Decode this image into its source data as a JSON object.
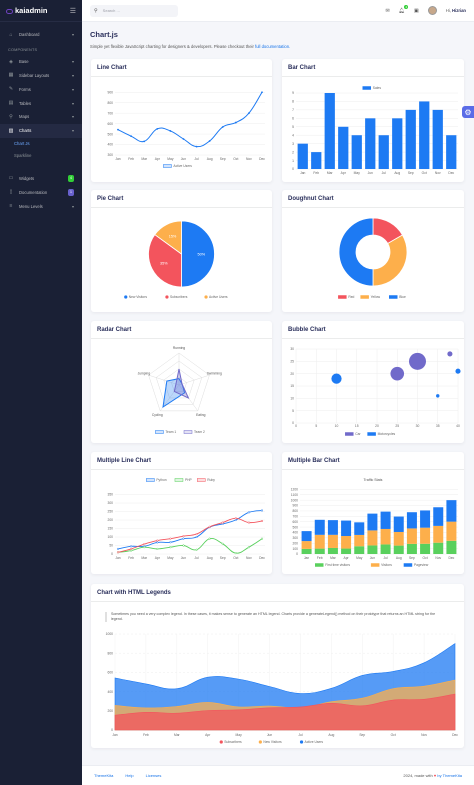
{
  "brand": {
    "name": "kaiadmin"
  },
  "topbar": {
    "search_placeholder": "Search ...",
    "notify_count": "4",
    "greeting": "Hi,",
    "user_name": "Hizrian"
  },
  "sidebar": {
    "items": [
      {
        "label": "Dashboard",
        "icon": "home-icon"
      }
    ],
    "section_label": "COMPONENTS",
    "components": [
      {
        "label": "Base",
        "icon": "layers-icon"
      },
      {
        "label": "Sidebar Layouts",
        "icon": "th-icon"
      },
      {
        "label": "Forms",
        "icon": "pen-icon"
      },
      {
        "label": "Tables",
        "icon": "table-icon"
      },
      {
        "label": "Maps",
        "icon": "map-marker-icon"
      },
      {
        "label": "Charts",
        "icon": "chart-bar-icon"
      }
    ],
    "chart_sub": [
      {
        "label": "Chart Js"
      },
      {
        "label": "Sparkline"
      }
    ],
    "bottom": [
      {
        "label": "Widgets",
        "icon": "desktop-icon",
        "badge": "4",
        "badge_color": "#31ce36"
      },
      {
        "label": "Documentation",
        "icon": "file-icon",
        "badge": "1",
        "badge_color": "#6861ce"
      },
      {
        "label": "Menu Levels",
        "icon": "bars-icon"
      }
    ]
  },
  "page": {
    "title": "Chart.js",
    "subtitle": "Simple yet flexible JavaScript charting for designers & developers. Please checkout their",
    "subtitle_link": "full documentation."
  },
  "cards": {
    "line": "Line Chart",
    "bar": "Bar Chart",
    "pie": "Pie Chart",
    "doughnut": "Doughnut Chart",
    "radar": "Radar Chart",
    "bubble": "Bubble Chart",
    "multiline": "Multiple Line Chart",
    "multibar": "Multiple Bar Chart",
    "html": "Chart with HTML Legends"
  },
  "html_legend_text": "Sometimes you need a very complex legend. In these cases, it makes sense to generate an HTML legend. Charts provide a generateLegend() method on their prototype that returns an HTML string for the legend.",
  "footer": {
    "links": [
      "ThemeKita",
      "Help",
      "Licenses"
    ],
    "credit": "2024, made with",
    "credit_by": "by ThemeKita"
  },
  "colors": {
    "blue": "#1d7af3",
    "red": "#f3545d",
    "yellow": "#fdaf4b",
    "purple": "#716aca",
    "green": "#59d05d",
    "sidebar": "#1a2035"
  },
  "chart_data": [
    {
      "id": "line",
      "type": "line",
      "categories": [
        "Jan",
        "Feb",
        "Mar",
        "Apr",
        "May",
        "Jun",
        "Jul",
        "Aug",
        "Sep",
        "Oct",
        "Nov",
        "Dec"
      ],
      "ylim": [
        300,
        950
      ],
      "yticks": [
        300,
        400,
        500,
        600,
        700,
        800,
        900
      ],
      "series": [
        {
          "name": "Active Users",
          "color": "#1d7af3",
          "values": [
            542,
            480,
            430,
            550,
            530,
            453,
            380,
            434,
            568,
            610,
            700,
            900
          ]
        }
      ]
    },
    {
      "id": "bar",
      "type": "bar",
      "categories": [
        "Jan",
        "Feb",
        "Mar",
        "Apr",
        "May",
        "Jun",
        "Jul",
        "Aug",
        "Sep",
        "Oct",
        "Nov",
        "Dec"
      ],
      "ylim": [
        0,
        9
      ],
      "yticks": [
        0,
        1,
        2,
        3,
        4,
        5,
        6,
        7,
        8,
        9
      ],
      "series": [
        {
          "name": "Sales",
          "color": "#1d7af3",
          "values": [
            3,
            2,
            9,
            5,
            4,
            6,
            4,
            6,
            7,
            8,
            7,
            4
          ]
        }
      ]
    },
    {
      "id": "pie",
      "type": "pie",
      "series": [
        {
          "name": "New Visitors",
          "value": 50,
          "label": "50%",
          "color": "#1d7af3"
        },
        {
          "name": "Subscribers",
          "value": 35,
          "label": "35%",
          "color": "#f3545d"
        },
        {
          "name": "Active Users",
          "value": 15,
          "label": "15%",
          "color": "#fdaf4b"
        }
      ]
    },
    {
      "id": "doughnut",
      "type": "doughnut",
      "series": [
        {
          "name": "Red",
          "value": 10,
          "color": "#f3545d"
        },
        {
          "name": "Yellow",
          "value": 20,
          "color": "#fdaf4b"
        },
        {
          "name": "Blue",
          "value": 30,
          "color": "#1d7af3"
        }
      ]
    },
    {
      "id": "radar",
      "type": "radar",
      "categories": [
        "Running",
        "Swimming",
        "Eating",
        "Cycling",
        "Jumping"
      ],
      "rmax": 100,
      "series": [
        {
          "name": "Team 1",
          "color": "#1d7af3",
          "values": [
            20,
            10,
            30,
            85,
            40
          ]
        },
        {
          "name": "Team 2",
          "color": "#716aca",
          "values": [
            50,
            10,
            50,
            25,
            10
          ]
        }
      ]
    },
    {
      "id": "bubble",
      "type": "scatter",
      "xlim": [
        0,
        40
      ],
      "ylim": [
        0,
        30
      ],
      "xticks": [
        0,
        5,
        10,
        15,
        20,
        25,
        30,
        35,
        40
      ],
      "yticks": [
        0,
        5,
        10,
        15,
        20,
        25,
        30
      ],
      "series": [
        {
          "name": "Car",
          "color": "#716aca",
          "points": [
            [
              25,
              20,
              8
            ],
            [
              30,
              25,
              10
            ],
            [
              38,
              28,
              3
            ]
          ]
        },
        {
          "name": "Motorcycles",
          "color": "#1d7af3",
          "points": [
            [
              10,
              18,
              6
            ],
            [
              35,
              11,
              2
            ],
            [
              40,
              21,
              3
            ]
          ]
        }
      ]
    },
    {
      "id": "multiline",
      "type": "line",
      "categories": [
        "Jan",
        "Feb",
        "Mar",
        "Apr",
        "May",
        "Jun",
        "Jul",
        "Aug",
        "Sep",
        "Oct",
        "Nov",
        "Dec"
      ],
      "ylim": [
        0,
        400
      ],
      "yticks": [
        0,
        50,
        100,
        150,
        200,
        250,
        300,
        350
      ],
      "series": [
        {
          "name": "Python",
          "color": "#1d7af3",
          "values": [
            30,
            45,
            45,
            68,
            69,
            90,
            100,
            158,
            177,
            200,
            245,
            256
          ]
        },
        {
          "name": "PHP",
          "color": "#59d05d",
          "values": [
            10,
            20,
            40,
            30,
            40,
            50,
            25,
            90,
            60,
            5,
            40,
            90
          ]
        },
        {
          "name": "Ruby",
          "color": "#f3545d",
          "values": [
            10,
            30,
            58,
            79,
            90,
            105,
            117,
            160,
            185,
            210,
            185,
            194
          ]
        }
      ]
    },
    {
      "id": "multibar",
      "type": "bar",
      "stacked": true,
      "title": "Traffic Stats",
      "categories": [
        "Jan",
        "Feb",
        "Mar",
        "Apr",
        "May",
        "Jun",
        "Jul",
        "Aug",
        "Sep",
        "Oct",
        "Nov",
        "Dec"
      ],
      "ylim": [
        0,
        1300
      ],
      "yticks": [
        0,
        100,
        200,
        300,
        400,
        500,
        600,
        700,
        800,
        900,
        1000,
        1100,
        1200
      ],
      "series": [
        {
          "name": "First time visitors",
          "color": "#59d05d",
          "values": [
            95,
            100,
            112,
            101,
            144,
            159,
            178,
            156,
            188,
            190,
            210,
            245
          ]
        },
        {
          "name": "Visitors",
          "color": "#fdaf4b",
          "values": [
            145,
            256,
            244,
            233,
            210,
            279,
            287,
            253,
            287,
            299,
            312,
            356
          ]
        },
        {
          "name": "Pageview",
          "color": "#1d7af3",
          "values": [
            185,
            279,
            273,
            287,
            234,
            312,
            322,
            286,
            301,
            320,
            346,
            399
          ]
        }
      ]
    },
    {
      "id": "html",
      "type": "area",
      "categories": [
        "Jan",
        "Feb",
        "Mar",
        "Apr",
        "May",
        "Jun",
        "Jul",
        "Aug",
        "Sep",
        "Oct",
        "Nov",
        "Dec"
      ],
      "ylim": [
        0,
        1000
      ],
      "yticks": [
        0,
        200,
        400,
        600,
        800,
        1000
      ],
      "series": [
        {
          "name": "Subscribers",
          "color": "#f3545d",
          "values": [
            154,
            184,
            175,
            203,
            210,
            231,
            240,
            278,
            252,
            312,
            320,
            374
          ]
        },
        {
          "name": "New Visitors",
          "color": "#fdaf4b",
          "values": [
            256,
            230,
            245,
            287,
            240,
            250,
            230,
            295,
            331,
            431,
            456,
            521
          ]
        },
        {
          "name": "Active Users",
          "color": "#1d7af3",
          "values": [
            542,
            480,
            430,
            550,
            530,
            453,
            380,
            434,
            568,
            610,
            700,
            900
          ]
        }
      ]
    }
  ]
}
